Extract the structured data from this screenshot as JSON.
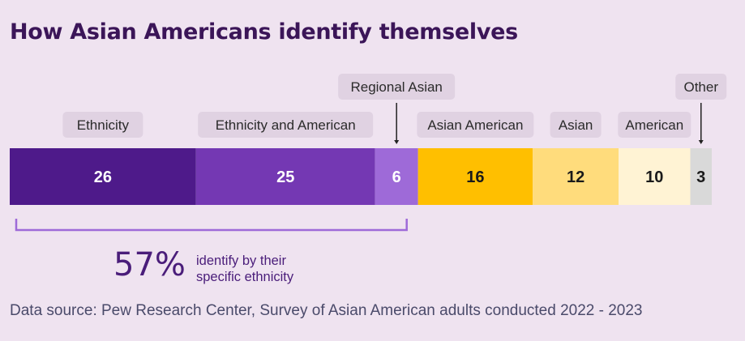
{
  "title": "How Asian Americans identify themselves",
  "summary": {
    "value": "57%",
    "line1": "identify by their",
    "line2": "specific ethnicity"
  },
  "source": "Data source: Pew Research Center, Survey of Asian American adults conducted 2022 - 2023",
  "chart_data": {
    "type": "bar",
    "stacked": true,
    "orientation": "horizontal",
    "title": "How Asian Americans identify themselves",
    "categories": [
      "Ethnicity",
      "Ethnicity and American",
      "Regional Asian",
      "Asian American",
      "Asian",
      "American",
      "Other"
    ],
    "values": [
      26,
      25,
      6,
      16,
      12,
      10,
      3
    ],
    "colors": [
      "#4e1a8a",
      "#7438b3",
      "#9e6ad8",
      "#ffbf00",
      "#ffdc7c",
      "#fff3d4",
      "#d9d9d9"
    ],
    "value_text_colors": [
      "#ffffff",
      "#ffffff",
      "#ffffff",
      "#1a1a1a",
      "#1a1a1a",
      "#1a1a1a",
      "#1a1a1a"
    ],
    "bracket_group": [
      "Ethnicity",
      "Ethnicity and American",
      "Regional Asian"
    ],
    "bracket_color": "#9e6ad8"
  }
}
